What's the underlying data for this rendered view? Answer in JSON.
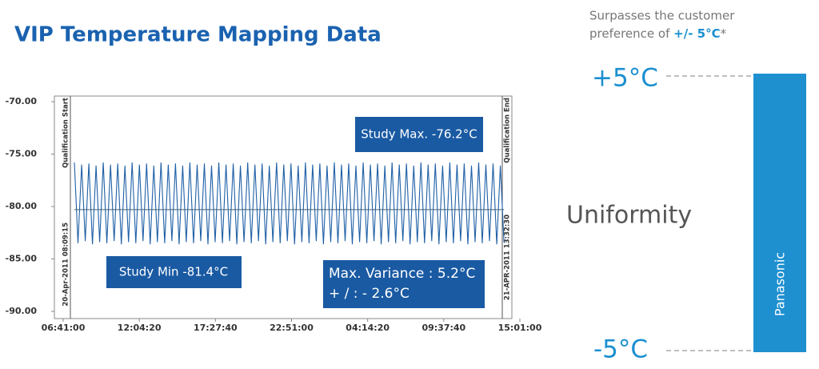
{
  "title": "VIP Temperature Mapping Data",
  "note": {
    "line1": "Surpasses the customer",
    "line2": "preference of ",
    "highlight": "+/- 5°C",
    "suffix": "*"
  },
  "uniformity": {
    "label": "Uniformity",
    "upper": "+5°C",
    "lower": "-5°C",
    "bar_label": "Panasonic"
  },
  "chart_data": {
    "type": "line",
    "color": "#1f5fa6",
    "xlim": [
      0,
      116400
    ],
    "xticks": [
      {
        "value": 0,
        "label": "06:41:00"
      },
      {
        "value": 19400,
        "label": "12:04:20"
      },
      {
        "value": 38800,
        "label": "17:27:40"
      },
      {
        "value": 58200,
        "label": "22:51:00"
      },
      {
        "value": 77600,
        "label": "04:14:20"
      },
      {
        "value": 97000,
        "label": "09:37:40"
      },
      {
        "value": 116400,
        "label": "15:01:00"
      }
    ],
    "ylim": [
      -90,
      -70
    ],
    "yticks": [
      {
        "value": -70,
        "label": "-70.00"
      },
      {
        "value": -75,
        "label": "-75.00"
      },
      {
        "value": -80,
        "label": "-80.00"
      },
      {
        "value": -85,
        "label": "-85.00"
      },
      {
        "value": -90,
        "label": "-90.00"
      }
    ],
    "mean_line": -80.3,
    "start_marker": {
      "title": "Qualification Start",
      "date": "20-Apr-2011 08:09:15"
    },
    "end_marker": {
      "title": "Qualification End",
      "date": "21-APR-2011 13:32:30"
    },
    "annotations": {
      "max": "Study Max. -76.2°C",
      "min": "Study Min -81.4°C",
      "variance": "Max. Variance : 5.2°C",
      "half": "+ / : - 2.6°C"
    },
    "x": [
      2860,
      3780,
      4700,
      5620,
      6540,
      7460,
      8380,
      9300,
      10220,
      11140,
      12060,
      12980,
      13900,
      14820,
      15740,
      16660,
      17580,
      18500,
      19420,
      20340,
      21260,
      22180,
      23100,
      24020,
      24940,
      25860,
      26780,
      27700,
      28620,
      29540,
      30460,
      31380,
      32300,
      33220,
      34140,
      35060,
      35980,
      36900,
      37820,
      38740,
      39660,
      40580,
      41500,
      42420,
      43340,
      44260,
      45180,
      46100,
      47020,
      47940,
      48860,
      49780,
      50700,
      51620,
      52540,
      53460,
      54380,
      55300,
      56220,
      57140,
      58060,
      58980,
      59900,
      60820,
      61740,
      62660,
      63580,
      64500,
      65420,
      66340,
      67260,
      68180,
      69100,
      70020,
      70940,
      71860,
      72780,
      73700,
      74620,
      75540,
      76460,
      77380,
      78300,
      79220,
      80140,
      81060,
      81980,
      82900,
      83820,
      84740,
      85660,
      86580,
      87500,
      88420,
      89340,
      90260,
      91180,
      92100,
      93020,
      93940,
      94860,
      95780,
      96700,
      97620,
      98540,
      99460,
      100380,
      101300,
      102220,
      103140,
      104060,
      104980,
      105900,
      106820,
      107740,
      108660,
      109580,
      110500,
      111420,
      112340
    ],
    "values": [
      -75.8,
      -83.5,
      -76.0,
      -83.3,
      -75.9,
      -83.6,
      -76.1,
      -83.4,
      -75.8,
      -83.5,
      -76.0,
      -83.3,
      -75.9,
      -83.6,
      -76.1,
      -83.4,
      -75.8,
      -83.5,
      -76.0,
      -83.3,
      -75.9,
      -83.6,
      -76.1,
      -83.4,
      -75.8,
      -83.5,
      -76.0,
      -83.3,
      -75.9,
      -83.6,
      -76.1,
      -83.4,
      -75.8,
      -83.5,
      -76.0,
      -83.3,
      -75.9,
      -83.6,
      -76.1,
      -83.4,
      -75.8,
      -83.5,
      -76.0,
      -83.3,
      -75.9,
      -83.6,
      -76.1,
      -83.4,
      -75.8,
      -83.5,
      -76.0,
      -83.3,
      -75.9,
      -83.6,
      -76.1,
      -83.4,
      -75.8,
      -83.5,
      -76.0,
      -83.3,
      -75.9,
      -83.6,
      -76.1,
      -83.4,
      -75.8,
      -83.5,
      -76.0,
      -83.3,
      -75.9,
      -83.6,
      -76.1,
      -83.4,
      -75.8,
      -83.5,
      -76.0,
      -83.3,
      -75.9,
      -83.6,
      -76.1,
      -83.4,
      -75.8,
      -83.5,
      -76.0,
      -83.3,
      -75.9,
      -83.6,
      -76.1,
      -83.4,
      -75.8,
      -83.5,
      -76.0,
      -83.3,
      -75.9,
      -83.6,
      -76.1,
      -83.4,
      -75.8,
      -83.5,
      -76.0,
      -83.3,
      -75.9,
      -83.6,
      -76.1,
      -83.4,
      -75.8,
      -83.5,
      -76.0,
      -83.3,
      -75.9,
      -83.6,
      -76.1,
      -83.4,
      -75.8,
      -83.5,
      -76.0,
      -83.3,
      -75.9,
      -83.6,
      -76.1,
      -83.4
    ]
  }
}
